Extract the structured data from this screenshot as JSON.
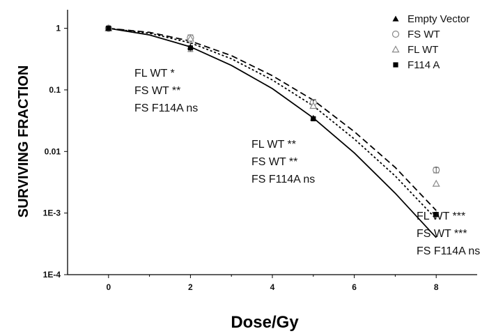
{
  "chart_data": {
    "type": "scatter",
    "xlabel": "Dose/Gy",
    "ylabel": "SURVIVING FRACTION",
    "xlim": [
      -1,
      9
    ],
    "ylim": [
      0.0001,
      2
    ],
    "y_scale": "log",
    "x_ticks": [
      "0",
      "2",
      "4",
      "6",
      "8"
    ],
    "x_tick_values": [
      0,
      2,
      4,
      6,
      8
    ],
    "y_ticks": [
      "1",
      "0.1",
      "0.01",
      "1E-3",
      "1E-4"
    ],
    "y_tick_values": [
      1,
      0.1,
      0.01,
      0.001,
      0.0001
    ],
    "legend_position": "top-right",
    "series": [
      {
        "name": "Empty Vector",
        "marker": "filled-triangle",
        "line": "solid",
        "x": [
          0,
          2,
          5,
          8
        ],
        "y": [
          1.0,
          0.5,
          0.035,
          0.00095
        ],
        "fit": [
          [
            0,
            1.0
          ],
          [
            1,
            0.78
          ],
          [
            2,
            0.5
          ],
          [
            3,
            0.25
          ],
          [
            4,
            0.105
          ],
          [
            5,
            0.035
          ],
          [
            6,
            0.0095
          ],
          [
            7,
            0.0021
          ],
          [
            8,
            0.0004
          ]
        ]
      },
      {
        "name": "FS WT",
        "marker": "open-circle",
        "line": "dashed",
        "x": [
          0,
          2,
          5,
          8
        ],
        "y": [
          1.0,
          0.7,
          0.062,
          0.005
        ],
        "fit": [
          [
            0,
            1.0
          ],
          [
            1,
            0.86
          ],
          [
            2,
            0.62
          ],
          [
            3,
            0.36
          ],
          [
            4,
            0.17
          ],
          [
            5,
            0.068
          ],
          [
            6,
            0.021
          ],
          [
            7,
            0.0055
          ],
          [
            8,
            0.0011
          ]
        ]
      },
      {
        "name": "FL WT",
        "marker": "open-triangle",
        "line": "dotted",
        "x": [
          0,
          2,
          5,
          8
        ],
        "y": [
          1.0,
          0.68,
          0.055,
          0.003
        ],
        "fit": [
          [
            0,
            1.0
          ],
          [
            1,
            0.83
          ],
          [
            2,
            0.58
          ],
          [
            3,
            0.32
          ],
          [
            4,
            0.145
          ],
          [
            5,
            0.055
          ],
          [
            6,
            0.016
          ],
          [
            7,
            0.004
          ],
          [
            8,
            0.0008
          ]
        ]
      },
      {
        "name": "F114 A",
        "marker": "filled-square",
        "line": "none",
        "x": [
          0,
          2,
          5,
          8
        ],
        "y": [
          1.0,
          0.48,
          0.034,
          0.00095
        ]
      }
    ],
    "error_bars": [
      {
        "x": 2,
        "y_low": 0.42,
        "y_high": 0.58
      },
      {
        "x": 2,
        "y_low": 0.62,
        "y_high": 0.78
      },
      {
        "x": 5,
        "y_low": 0.052,
        "y_high": 0.07
      },
      {
        "x": 8,
        "y_low": 0.0045,
        "y_high": 0.0055
      }
    ],
    "annotations": [
      {
        "x": 2,
        "lines": [
          "FL WT *",
          "FS WT **",
          "FS F114A ns"
        ]
      },
      {
        "x": 5,
        "lines": [
          "FL WT **",
          "FS WT **",
          "FS F114A ns"
        ]
      },
      {
        "x": 8,
        "lines": [
          "FL WT ***",
          "FS WT ***",
          "FS F114A ns"
        ]
      }
    ],
    "colors": {
      "line": "#000000",
      "open_marker": "#888888"
    }
  }
}
